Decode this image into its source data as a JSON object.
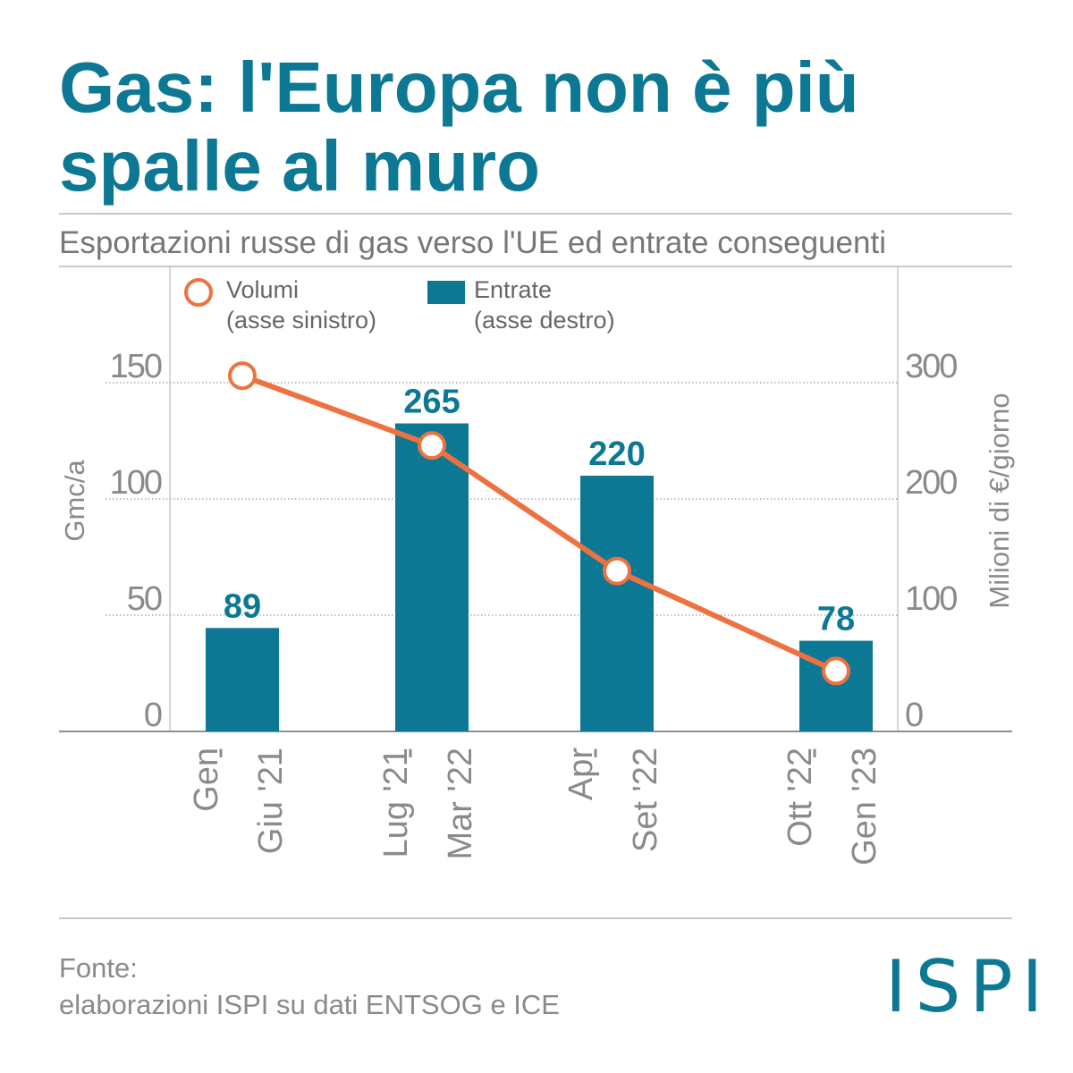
{
  "header": {
    "title_line1": "Gas: l'Europa non è più",
    "title_line2": "spalle al muro",
    "subtitle": "Esportazioni russe di gas verso l'UE ed entrate conseguenti"
  },
  "footer": {
    "source_label": "Fonte:",
    "source_text": "elaborazioni ISPI su dati ENTSOG e ICE",
    "logo_text": "ISPI"
  },
  "colors": {
    "accent": "#0d7893",
    "line": "#ee7140",
    "axis_text": "#8a8a8a",
    "grid": "#9a9a9a"
  },
  "chart_data": {
    "type": "bar+line",
    "categories": [
      [
        "Gen",
        "Giu '21"
      ],
      [
        "Lug '21",
        "Mar '22"
      ],
      [
        "Apr",
        "Set '22"
      ],
      [
        "Ott '22",
        "Gen '23"
      ]
    ],
    "series": [
      {
        "name": "Volumi",
        "axis_note": "(asse sinistro)",
        "type": "line",
        "axis": "left",
        "values": [
          153,
          123,
          69,
          26
        ]
      },
      {
        "name": "Entrate",
        "axis_note": "(asse destro)",
        "type": "bar",
        "axis": "right",
        "values": [
          89,
          265,
          220,
          78
        ],
        "labels": [
          "89",
          "265",
          "220",
          "78"
        ]
      }
    ],
    "left_axis": {
      "label": "Gmc/a",
      "ticks": [
        0,
        50,
        100,
        150
      ],
      "range": [
        0,
        200
      ]
    },
    "right_axis": {
      "label": "Milioni di €/giorno",
      "ticks": [
        0,
        100,
        200,
        300
      ],
      "range": [
        0,
        400
      ]
    },
    "legend_position": "top-left"
  }
}
